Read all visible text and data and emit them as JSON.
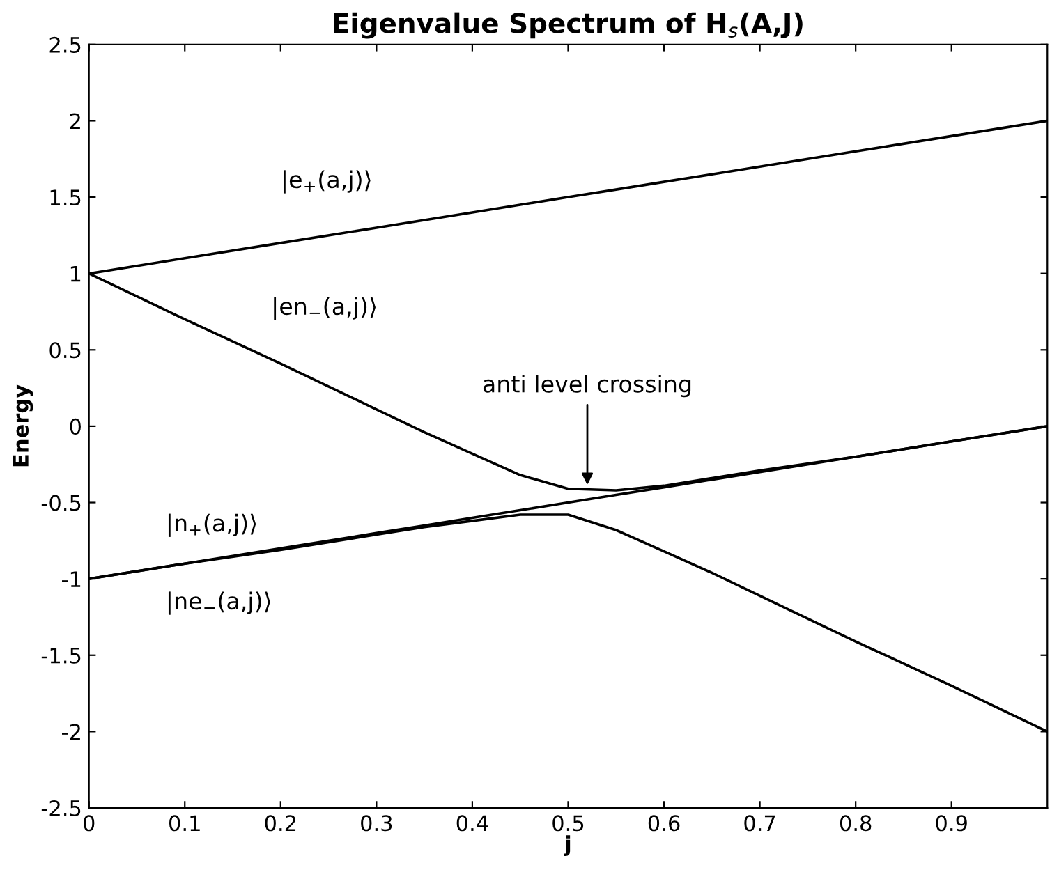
{
  "chart_data": {
    "type": "line",
    "title": "Eigenvalue Spectrum of H$_{s}$(A,J)",
    "xlabel": "j",
    "ylabel": "Energy",
    "x": [
      0,
      0.1,
      0.2,
      0.3,
      0.35,
      0.4,
      0.45,
      0.5,
      0.55,
      0.6,
      0.65,
      0.7,
      0.8,
      0.9,
      1.0
    ],
    "series": [
      {
        "name": "|e$_{+}$(a,j)⟩",
        "color": "#000000",
        "values": [
          1.0,
          1.1,
          1.2,
          1.3,
          1.35,
          1.4,
          1.45,
          1.5,
          1.55,
          1.6,
          1.65,
          1.7,
          1.8,
          1.9,
          2.0
        ]
      },
      {
        "name": "|en$_{−}$(a,j)⟩",
        "color": "#000000",
        "values": [
          1.0,
          0.7,
          0.41,
          0.11,
          -0.04,
          -0.18,
          -0.32,
          -0.41,
          -0.42,
          -0.39,
          -0.34,
          -0.29,
          -0.2,
          -0.1,
          0.0
        ]
      },
      {
        "name": "|n$_{+}$(a,j)⟩",
        "color": "#000000",
        "values": [
          -1.0,
          -0.9,
          -0.8,
          -0.7,
          -0.65,
          -0.6,
          -0.55,
          -0.5,
          -0.45,
          -0.4,
          -0.35,
          -0.3,
          -0.2,
          -0.1,
          0.0
        ]
      },
      {
        "name": "|ne$_{−}$(a,j)⟩",
        "color": "#000000",
        "values": [
          -1.0,
          -0.9,
          -0.81,
          -0.71,
          -0.66,
          -0.62,
          -0.58,
          -0.58,
          -0.68,
          -0.82,
          -0.96,
          -1.11,
          -1.41,
          -1.7,
          -2.0
        ]
      }
    ],
    "annotations": [
      {
        "text": "anti level crossing",
        "x": 0.52,
        "y": -0.41
      }
    ],
    "xlim": [
      0,
      1
    ],
    "ylim": [
      -2.5,
      2.5
    ],
    "xticks": [
      0,
      0.1,
      0.2,
      0.3,
      0.4,
      0.5,
      0.6,
      0.7,
      0.8,
      0.9
    ],
    "yticks": [
      -2.5,
      -2,
      -1.5,
      -1,
      -0.5,
      0,
      0.5,
      1,
      1.5,
      2,
      2.5
    ],
    "grid": false,
    "legend": false,
    "marker": "none",
    "line_style": "solid"
  }
}
